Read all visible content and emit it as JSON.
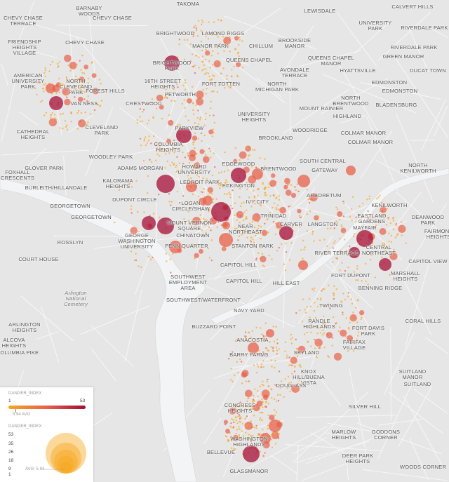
{
  "map": {
    "neighborhoods": [
      "TAKOMA",
      "BARNABY\nWOODS",
      "CHEVY CHASE\nTERRACE",
      "CHEVY CHASE",
      "LEWISDALE",
      "CALVERT HILLS",
      "UNIVERSITY\nPARK",
      "BRIGHTWOOD",
      "LAMOND RIGGS",
      "BROOKSIDE\nMANOR",
      "CHEVY CHASE",
      "FRIENDSHIP\nHEIGHTS\nVILLAGE",
      "MANOR PARK",
      "CHILLUM",
      "QUEENS CHAPEL\nMANOR",
      "RIVERDALE PARK",
      "RIVERDALE PARK",
      "GREEN MANOR",
      "BRIGHTWOOD\nPARK",
      "QUEENS CHAPEL",
      "AVONDALE\nTERRACE",
      "AMERICAN\nUNIVERSITY\nPARK",
      "NORTH\nCLEVELAND\nPARK",
      "FOREST HILLS",
      "16TH STREET\nHEIGHTS",
      "FORT TOTTEN",
      "NORTH\nMICHIGAN PARK",
      "HYATTSVILLE",
      "EDMONSTON",
      "DUCAT TOWN",
      "EDMONSTON",
      "VAN NESS",
      "CRESTWOOD",
      "PETWORTH",
      "NORTH\nBRENTWOOD",
      "MOUNT RAINIER",
      "BLADENSBURG",
      "UNIVERSITY\nHEIGHTS",
      "HIGHLAND",
      "CATHEDRAL\nHEIGHTS",
      "CLEVELAND\nPARK",
      "PARKVIEW",
      "COLMAR MANOR",
      "COLMAR MANOR",
      "WOODRIDGE",
      "BROOKLAND",
      "COLUMBIA\nHEIGHTS",
      "WOODLEY PARK",
      "HOWARD\nUNIVERSITY",
      "EDGEWOOD",
      "BRENTWOOD",
      "SOUTH CENTRAL",
      "GATEWAY",
      "ADAMS MORGAN",
      "GLOVER PARK",
      "FOXHALL\nCRESCENTS",
      "KALORAMA\nHEIGHTS",
      "LEDROIT PARK",
      "ECKINGTON",
      "NORTH\nKENILWORTH",
      "BURLEITH/HILLANDALE",
      "ARBORETUM",
      "GEORGETOWN",
      "DUPONT CIRCLE",
      "LOGAN\nCIRCLE/SHAW",
      "IVY CITY",
      "KENILWORTH",
      "DEANWOOD\nPARK",
      "GEORGETOWN",
      "GEORGE\nWASHINGTON\nUNIVERSITY",
      "MOUNT VERNON\nSQUARE",
      "NEAR\nNORTHEAST",
      "TRINIDAD",
      "CARVER",
      "LANGSTON",
      "EASTLAND\nGARDENS",
      "MAYFAIR",
      "FAIRMONT\nHEIGHTS",
      "ROSSLYN",
      "CHINATOWN",
      "PENN QUARTER",
      "STANTON PARK",
      "CENTRAL\nNORTHEAST",
      "RIVER TERRACE",
      "CAPITOL VIEW",
      "COURT HOUSE",
      "CAPITOL HILL",
      "FORT DUPONT",
      "MARSHALL\nHEIGHTS",
      "SOUTHWEST\nEMPLOYMENT\nAREA",
      "CAPITOL HILL",
      "HILL EAST",
      "BENNING RIDGE",
      "Arlington\nNational\nCemetery",
      "SOUTHWEST/WATERFRONT",
      "NAVY YARD",
      "TWINING",
      "ARLINGTON\nHEIGHTS",
      "BUZZARD POINT",
      "RANDLE\nHIGHLANDS",
      "FORT DAVIS\nPARK",
      "CORAL HILLS",
      "ALCOVA\nHEIGHTS",
      "ANACOSTIA",
      "FAIRFAX\nVILLAGE",
      "COLUMBIA PIKE",
      "BARRY FARMS",
      "SKYLAND",
      "KNOX\nHILL/BUENA\nVISTA",
      "SUITLAND\nMANOR",
      "DOUGLASS",
      "SUITLAND",
      "CONGRESS\nHEIGHTS",
      "SILVER HILL",
      "WASHINGTON\nHIGHLANDS",
      "MARLOW\nHEIGHTS",
      "GODDONS\nCORNER",
      "BELLEVUE",
      "DEER PARK\nHEIGHTS",
      "WOODS CORNER",
      "GLASSMANOR"
    ],
    "colors": {
      "low": "#f6a821",
      "mid": "#e8604a",
      "high": "#a50d35",
      "water": "#f3f4f5",
      "land": "#e6e6e6"
    }
  },
  "legend": {
    "color_title": "DANGER_INDEX",
    "color_min": "1",
    "color_max": "53",
    "color_avg": "5.94 AVG",
    "size_title": "DANGER_INDEX",
    "size_ticks": [
      "53",
      "35",
      "26",
      "18",
      "9",
      "1"
    ],
    "size_avg": "AVG: 5.94"
  }
}
